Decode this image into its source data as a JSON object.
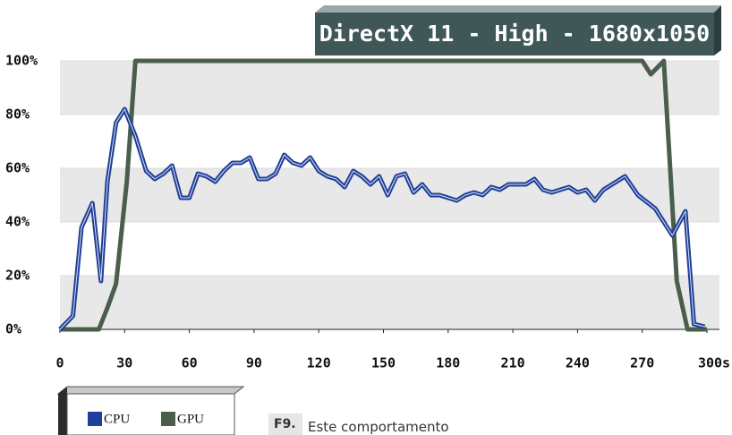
{
  "chart_data": {
    "type": "line",
    "title": "DirectX 11 - High - 1680x1050",
    "xlim": [
      0,
      300
    ],
    "xticks": [
      0,
      30,
      60,
      90,
      120,
      150,
      180,
      210,
      240,
      270,
      {
        "value": 300,
        "label": "300s"
      }
    ],
    "ylim": [
      0,
      100
    ],
    "yticks": [
      {
        "value": 0,
        "label": "0%"
      },
      {
        "value": 20,
        "label": "20%"
      },
      {
        "value": 40,
        "label": "40%"
      },
      {
        "value": 60,
        "label": "60%"
      },
      {
        "value": 80,
        "label": "80%"
      },
      {
        "value": 100,
        "label": "100%"
      }
    ],
    "grid": true,
    "legend": "bottom-left",
    "series": [
      {
        "name": "CPU",
        "color": "#1f3f99",
        "x": [
          0,
          6,
          10,
          15,
          19,
          22,
          26,
          30,
          35,
          40,
          44,
          48,
          52,
          56,
          60,
          64,
          68,
          72,
          76,
          80,
          84,
          88,
          92,
          96,
          100,
          104,
          108,
          112,
          116,
          120,
          124,
          128,
          132,
          136,
          140,
          144,
          148,
          152,
          156,
          160,
          164,
          168,
          172,
          176,
          180,
          184,
          188,
          192,
          196,
          200,
          204,
          208,
          212,
          216,
          220,
          224,
          228,
          232,
          236,
          240,
          244,
          248,
          252,
          256,
          262,
          268,
          276,
          284,
          290,
          294,
          299
        ],
        "values": [
          0,
          5,
          38,
          47,
          18,
          55,
          77,
          82,
          72,
          59,
          56,
          58,
          61,
          49,
          49,
          58,
          57,
          55,
          59,
          62,
          62,
          64,
          56,
          56,
          58,
          65,
          62,
          61,
          64,
          59,
          57,
          56,
          53,
          59,
          57,
          54,
          57,
          50,
          57,
          58,
          51,
          54,
          50,
          50,
          49,
          48,
          50,
          51,
          50,
          53,
          52,
          54,
          54,
          54,
          56,
          52,
          51,
          52,
          53,
          51,
          52,
          48,
          52,
          54,
          57,
          50,
          45,
          35,
          44,
          2,
          1
        ]
      },
      {
        "name": "GPU",
        "color": "#4a5e4c",
        "x": [
          0,
          18,
          22,
          26,
          31,
          35,
          270,
          274,
          280,
          286,
          291,
          300
        ],
        "values": [
          0,
          0,
          8,
          17,
          55,
          100,
          100,
          95,
          100,
          18,
          0,
          0
        ]
      }
    ],
    "caption_id": "F9.",
    "caption": "Este comportamento"
  }
}
